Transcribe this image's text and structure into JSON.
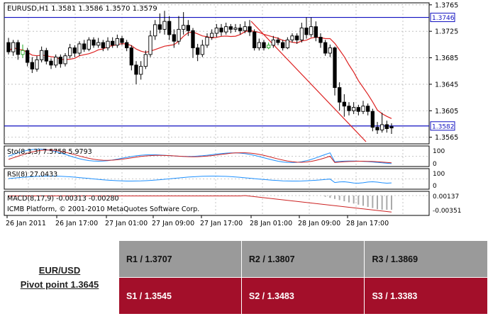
{
  "chart_data": [
    {
      "type": "candlestick",
      "title": "EURUSD,H1  1.3581 1.3586 1.3570 1.3579",
      "ylim": [
        1.3555,
        1.3768
      ],
      "y_ticks": [
        "1.3765",
        "1.3725",
        "1.3685",
        "1.3645",
        "1.3605",
        "1.3565"
      ],
      "x_ticks": [
        "26 Jan 2011",
        "26 Jan 17:00",
        "27 Jan 01:00",
        "27 Jan 09:00",
        "27 Jan 17:00",
        "28 Jan 01:00",
        "28 Jan 09:00",
        "28 Jan 17:00"
      ],
      "levels": [
        {
          "label": "1.3746",
          "value": 1.3746
        },
        {
          "label": "1.3582",
          "value": 1.3582
        }
      ],
      "candles": [
        [
          1.3708,
          1.3694,
          1.3715,
          1.369
        ],
        [
          1.3694,
          1.3708,
          1.3712,
          1.3688
        ],
        [
          1.3708,
          1.369,
          1.3712,
          1.3682
        ],
        [
          1.369,
          1.3696,
          1.3705,
          1.3685
        ],
        [
          1.3696,
          1.3678,
          1.37,
          1.3672
        ],
        [
          1.3678,
          1.3668,
          1.3686,
          1.3662
        ],
        [
          1.3668,
          1.3682,
          1.3688,
          1.3664
        ],
        [
          1.3682,
          1.3696,
          1.3702,
          1.3678
        ],
        [
          1.3696,
          1.368,
          1.37,
          1.3675
        ],
        [
          1.368,
          1.3674,
          1.3684,
          1.3668
        ],
        [
          1.3674,
          1.3686,
          1.369,
          1.367
        ],
        [
          1.3686,
          1.3676,
          1.369,
          1.367
        ],
        [
          1.3676,
          1.3688,
          1.3692,
          1.3672
        ],
        [
          1.3688,
          1.37,
          1.3706,
          1.3684
        ],
        [
          1.37,
          1.3692,
          1.3704,
          1.3686
        ],
        [
          1.3692,
          1.3706,
          1.371,
          1.3688
        ],
        [
          1.3706,
          1.3698,
          1.3712,
          1.3694
        ],
        [
          1.3698,
          1.3712,
          1.3716,
          1.3695
        ],
        [
          1.3712,
          1.3704,
          1.3716,
          1.37
        ],
        [
          1.3704,
          1.3708,
          1.3715,
          1.37
        ],
        [
          1.3708,
          1.37,
          1.3712,
          1.3695
        ],
        [
          1.37,
          1.371,
          1.3716,
          1.3696
        ],
        [
          1.371,
          1.3704,
          1.3716,
          1.37
        ],
        [
          1.3704,
          1.3714,
          1.372,
          1.37
        ],
        [
          1.3714,
          1.3708,
          1.3718,
          1.3704
        ],
        [
          1.3708,
          1.37,
          1.3712,
          1.3695
        ],
        [
          1.37,
          1.3674,
          1.3704,
          1.3666
        ],
        [
          1.3674,
          1.366,
          1.368,
          1.3645
        ],
        [
          1.366,
          1.3672,
          1.368,
          1.3652
        ],
        [
          1.3672,
          1.369,
          1.3696,
          1.3668
        ],
        [
          1.369,
          1.3718,
          1.3726,
          1.3686
        ],
        [
          1.3718,
          1.3735,
          1.3742,
          1.3712
        ],
        [
          1.3735,
          1.3728,
          1.3752,
          1.3722
        ],
        [
          1.3728,
          1.374,
          1.3756,
          1.372
        ],
        [
          1.374,
          1.372,
          1.3748,
          1.3712
        ],
        [
          1.372,
          1.371,
          1.3728,
          1.37
        ],
        [
          1.371,
          1.3728,
          1.3748,
          1.3705
        ],
        [
          1.3728,
          1.3734,
          1.3754,
          1.372
        ],
        [
          1.3734,
          1.3726,
          1.3742,
          1.3718
        ],
        [
          1.3726,
          1.37,
          1.373,
          1.3685
        ],
        [
          1.37,
          1.369,
          1.3706,
          1.368
        ],
        [
          1.369,
          1.3704,
          1.3712,
          1.3686
        ],
        [
          1.3704,
          1.3716,
          1.3722,
          1.37
        ],
        [
          1.3716,
          1.3722,
          1.3728,
          1.3712
        ],
        [
          1.3722,
          1.373,
          1.3736,
          1.3716
        ],
        [
          1.373,
          1.3724,
          1.3736,
          1.3718
        ],
        [
          1.3724,
          1.3732,
          1.3738,
          1.372
        ],
        [
          1.3732,
          1.3728,
          1.3736,
          1.3722
        ],
        [
          1.3728,
          1.373,
          1.3736,
          1.3724
        ],
        [
          1.373,
          1.3726,
          1.3736,
          1.372
        ],
        [
          1.3726,
          1.3732,
          1.374,
          1.3722
        ],
        [
          1.3732,
          1.3724,
          1.3742,
          1.3718
        ],
        [
          1.3724,
          1.37,
          1.3728,
          1.3696
        ],
        [
          1.37,
          1.3708,
          1.3714,
          1.3696
        ],
        [
          1.3708,
          1.37,
          1.3712,
          1.3696
        ],
        [
          1.37,
          1.3704,
          1.3708,
          1.3698
        ],
        [
          1.3704,
          1.3712,
          1.3718,
          1.37
        ],
        [
          1.3712,
          1.3708,
          1.3716,
          1.3704
        ],
        [
          1.3708,
          1.37,
          1.3712,
          1.3696
        ],
        [
          1.37,
          1.3712,
          1.3716,
          1.3698
        ],
        [
          1.3712,
          1.3718,
          1.3722,
          1.3708
        ],
        [
          1.3718,
          1.3712,
          1.3722,
          1.3706
        ],
        [
          1.3712,
          1.373,
          1.3738,
          1.3708
        ],
        [
          1.373,
          1.372,
          1.3746,
          1.3714
        ],
        [
          1.372,
          1.3732,
          1.3746,
          1.3716
        ],
        [
          1.3732,
          1.3716,
          1.374,
          1.371
        ],
        [
          1.3716,
          1.3708,
          1.3722,
          1.37
        ],
        [
          1.3708,
          1.3692,
          1.3712,
          1.3688
        ],
        [
          1.3692,
          1.37,
          1.3705,
          1.3686
        ],
        [
          1.37,
          1.364,
          1.3702,
          1.3628
        ],
        [
          1.364,
          1.3618,
          1.3648,
          1.3605
        ],
        [
          1.3618,
          1.3612,
          1.363,
          1.3596
        ],
        [
          1.3612,
          1.3605,
          1.3618,
          1.3598
        ],
        [
          1.3605,
          1.361,
          1.3618,
          1.36
        ],
        [
          1.361,
          1.3604,
          1.3614,
          1.3598
        ],
        [
          1.3604,
          1.3612,
          1.362,
          1.36
        ],
        [
          1.3612,
          1.3604,
          1.3616,
          1.3598
        ],
        [
          1.3604,
          1.358,
          1.3608,
          1.3574
        ],
        [
          1.358,
          1.3576,
          1.3588,
          1.357
        ],
        [
          1.3576,
          1.3584,
          1.3602,
          1.3572
        ],
        [
          1.3584,
          1.3578,
          1.359,
          1.3572
        ],
        [
          1.3581,
          1.3579,
          1.3586,
          1.357
        ]
      ],
      "indicators": [
        {
          "label": "Sto(8,3,3) 7.5758 5.9793",
          "ticks": [
            "100",
            "0"
          ]
        },
        {
          "label": "RSI(8) 27.0433",
          "ticks": [
            "100",
            "0"
          ]
        },
        {
          "label": "MACD(8,17,9) -0.00313 -0.00280",
          "ticks": [
            "0.00137",
            "-0.00351"
          ]
        }
      ],
      "copyright": "ICMB Platform, © 2001-2010 MetaQuotes Software Corp."
    }
  ],
  "pivot": {
    "symbol": "EUR/USD",
    "pivot_label": "Pivot point 1.3645",
    "r1": "R1 / 1.3707",
    "r2": "R2 / 1.3807",
    "r3": "R3 / 1.3869",
    "s1": "S1 / 1.3545",
    "s2": "S2 / 1.3483",
    "s3": "S3 / 1.3383"
  }
}
